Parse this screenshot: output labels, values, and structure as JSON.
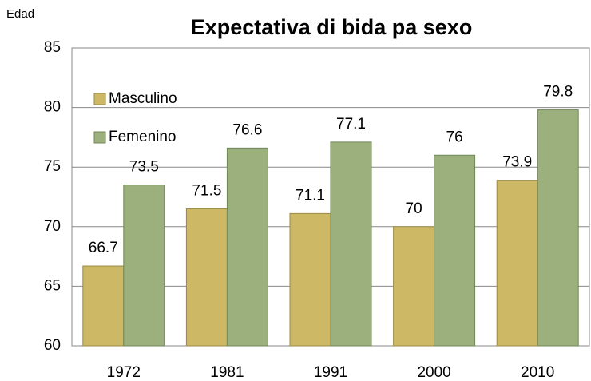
{
  "chart_data": {
    "type": "bar",
    "title": "Expectativa di bida pa sexo",
    "y_label": "Edad",
    "categories": [
      "1972",
      "1981",
      "1991",
      "2000",
      "2010"
    ],
    "series": [
      {
        "name": "Masculino",
        "color": "#cdb866",
        "values": [
          66.7,
          71.5,
          71.1,
          70,
          73.9
        ]
      },
      {
        "name": "Femenino",
        "color": "#9cb07e",
        "values": [
          73.5,
          76.6,
          77.1,
          76,
          79.8
        ]
      }
    ],
    "ylim": [
      60,
      85
    ],
    "yticks": [
      60,
      65,
      70,
      75,
      80,
      85
    ],
    "grid": true,
    "legend": "top-left"
  }
}
